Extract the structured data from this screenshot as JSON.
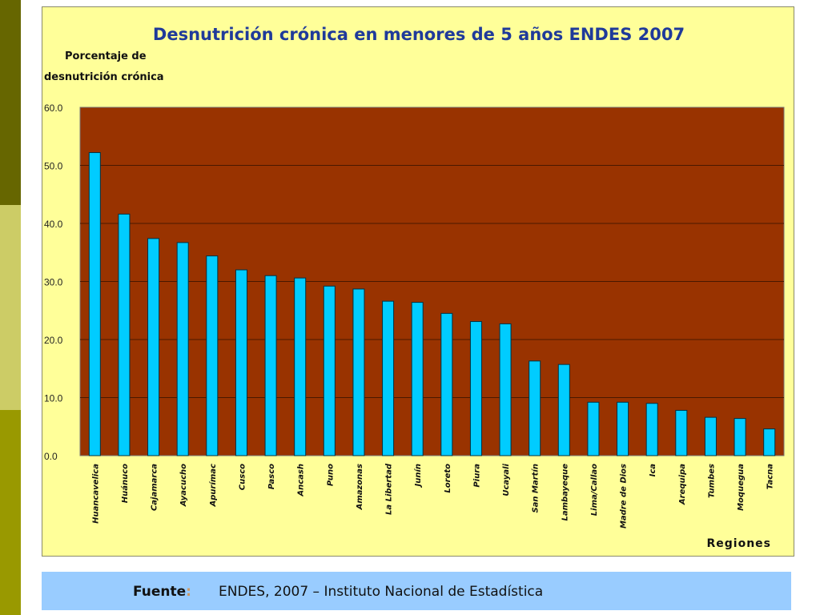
{
  "colors": {
    "stripe_top": "#666600",
    "stripe_middle": "#cccc66",
    "stripe_bottom": "#999900",
    "chart_background": "#ffff99",
    "plot_background": "#993300",
    "bar_fill": "#00ccff",
    "title_color": "#1f3a9a",
    "source_bar": "#99ccff"
  },
  "chart_data": {
    "type": "bar",
    "title": "Desnutrición crónica en menores de 5 años ENDES 2007",
    "ylabel_line1": "Porcentaje de",
    "ylabel_line2": "desnutrición crónica",
    "xlabel": "Regiones",
    "ylim": [
      0,
      60
    ],
    "yticks": [
      "0.0",
      "10.0",
      "20.0",
      "30.0",
      "40.0",
      "50.0",
      "60.0"
    ],
    "grid": true,
    "categories": [
      "Huancavelica",
      "Huánuco",
      "Cajamarca",
      "Ayacucho",
      "Apurímac",
      "Cusco",
      "Pasco",
      "Ancash",
      "Puno",
      "Amazonas",
      "La Libertad",
      "Junín",
      "Loreto",
      "Piura",
      "Ucayali",
      "San Martín",
      "Lambayeque",
      "Lima/Callao",
      "Madre de Dios",
      "Ica",
      "Arequipa",
      "Tumbes",
      "Moquegua",
      "Tacna"
    ],
    "values": [
      52.2,
      41.6,
      37.4,
      36.7,
      34.4,
      32.0,
      31.0,
      30.6,
      29.2,
      28.7,
      26.6,
      26.4,
      24.5,
      23.1,
      22.7,
      16.3,
      15.7,
      9.2,
      9.2,
      9.0,
      7.8,
      6.6,
      6.4,
      4.6
    ]
  },
  "source": {
    "label": "Fuente",
    "separator": ":",
    "text": "ENDES, 2007 – Instituto Nacional de Estadística"
  }
}
